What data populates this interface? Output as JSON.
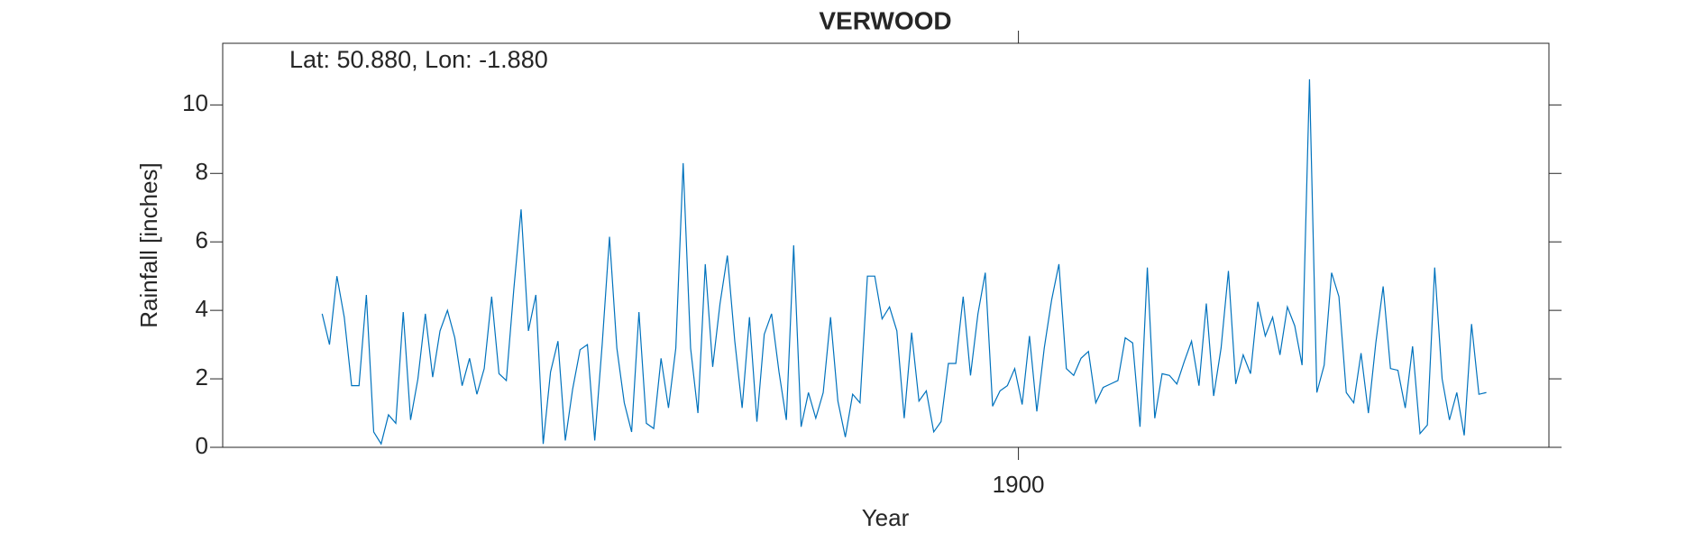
{
  "chart_data": {
    "type": "line",
    "title": "VERWOOD",
    "annotation": "Lat: 50.880, Lon: -1.880",
    "x_label": "Year",
    "y_label": "Rainfall [inches]",
    "xlim": [
      1891,
      1906
    ],
    "xticks": [
      1900
    ],
    "ylim": [
      0,
      11.8
    ],
    "yticks": [
      0,
      2,
      4,
      6,
      8,
      10
    ],
    "x": [
      1892.125,
      1892.208,
      1892.292,
      1892.375,
      1892.458,
      1892.542,
      1892.625,
      1892.708,
      1892.792,
      1892.875,
      1892.958,
      1893.042,
      1893.125,
      1893.208,
      1893.292,
      1893.375,
      1893.458,
      1893.542,
      1893.625,
      1893.708,
      1893.792,
      1893.875,
      1893.958,
      1894.042,
      1894.125,
      1894.208,
      1894.292,
      1894.375,
      1894.458,
      1894.542,
      1894.625,
      1894.708,
      1894.792,
      1894.875,
      1894.958,
      1895.042,
      1895.125,
      1895.208,
      1895.292,
      1895.375,
      1895.458,
      1895.542,
      1895.625,
      1895.708,
      1895.792,
      1895.875,
      1895.958,
      1896.042,
      1896.125,
      1896.208,
      1896.292,
      1896.375,
      1896.458,
      1896.542,
      1896.625,
      1896.708,
      1896.792,
      1896.875,
      1896.958,
      1897.042,
      1897.125,
      1897.208,
      1897.292,
      1897.375,
      1897.458,
      1897.542,
      1897.625,
      1897.708,
      1897.792,
      1897.875,
      1897.958,
      1898.042,
      1898.125,
      1898.208,
      1898.292,
      1898.375,
      1898.458,
      1898.542,
      1898.625,
      1898.708,
      1898.792,
      1898.875,
      1898.958,
      1899.042,
      1899.125,
      1899.208,
      1899.292,
      1899.375,
      1899.458,
      1899.542,
      1899.625,
      1899.708,
      1899.792,
      1899.875,
      1899.958,
      1900.042,
      1900.125,
      1900.208,
      1900.292,
      1900.375,
      1900.458,
      1900.542,
      1900.625,
      1900.708,
      1900.792,
      1900.875,
      1900.958,
      1901.042,
      1901.125,
      1901.208,
      1901.292,
      1901.375,
      1901.458,
      1901.542,
      1901.625,
      1901.708,
      1901.792,
      1901.875,
      1901.958,
      1902.042,
      1902.125,
      1902.208,
      1902.292,
      1902.375,
      1902.458,
      1902.542,
      1902.625,
      1902.708,
      1902.792,
      1902.875,
      1902.958,
      1903.042,
      1903.125,
      1903.208,
      1903.292,
      1903.375,
      1903.458,
      1903.542,
      1903.625,
      1903.708,
      1903.792,
      1903.875,
      1903.958,
      1904.042,
      1904.125,
      1904.208,
      1904.292,
      1904.375,
      1904.458,
      1904.542,
      1904.625,
      1904.708,
      1904.792,
      1904.875,
      1904.958,
      1905.042,
      1905.125,
      1905.208,
      1905.292
    ],
    "series": [
      {
        "name": "Rainfall",
        "color": "#0072bd",
        "values": [
          3.9,
          3.0,
          5.0,
          3.8,
          1.8,
          1.8,
          4.45,
          0.45,
          0.1,
          0.95,
          0.7,
          3.95,
          0.8,
          2.0,
          3.9,
          2.05,
          3.4,
          4.0,
          3.2,
          1.8,
          2.6,
          1.55,
          2.3,
          4.4,
          2.15,
          1.95,
          4.6,
          6.95,
          3.4,
          4.45,
          0.1,
          2.2,
          3.1,
          0.2,
          1.7,
          2.85,
          3.0,
          0.2,
          3.0,
          6.15,
          2.9,
          1.3,
          0.45,
          3.95,
          0.7,
          0.55,
          2.6,
          1.15,
          2.9,
          8.3,
          2.9,
          1.0,
          5.35,
          2.35,
          4.2,
          5.6,
          3.1,
          1.15,
          3.8,
          0.75,
          3.3,
          3.9,
          2.2,
          0.8,
          5.9,
          0.6,
          1.6,
          0.85,
          1.6,
          3.8,
          1.35,
          0.3,
          1.55,
          1.3,
          5.0,
          5.0,
          3.75,
          4.1,
          3.4,
          0.85,
          3.35,
          1.35,
          1.65,
          0.45,
          0.75,
          2.45,
          2.45,
          4.4,
          2.1,
          3.9,
          5.1,
          1.2,
          1.65,
          1.8,
          2.3,
          1.25,
          3.25,
          1.05,
          2.9,
          4.3,
          5.35,
          2.3,
          2.1,
          2.6,
          2.8,
          1.3,
          1.75,
          1.85,
          1.95,
          3.2,
          3.05,
          0.6,
          5.25,
          0.85,
          2.15,
          2.1,
          1.85,
          2.5,
          3.1,
          1.8,
          4.2,
          1.5,
          2.9,
          5.15,
          1.85,
          2.7,
          2.15,
          4.25,
          3.25,
          3.8,
          2.7,
          4.1,
          3.55,
          2.4,
          10.75,
          1.6,
          2.4,
          5.1,
          4.4,
          1.6,
          1.3,
          2.75,
          1.0,
          3.05,
          4.7,
          2.3,
          2.25,
          1.15,
          2.95,
          0.4,
          0.65,
          5.25,
          2.0,
          0.8,
          1.6,
          0.35,
          3.6,
          1.55,
          1.6
        ]
      }
    ]
  }
}
